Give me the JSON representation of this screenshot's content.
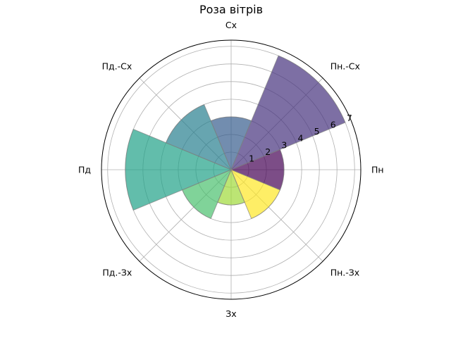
{
  "chart_data": {
    "type": "polar_bar",
    "title": "Роза вітрів",
    "directions": [
      "Пн",
      "Пн.-Сх",
      "Сх",
      "Пд.-Сх",
      "Пд",
      "Пд.-Зх",
      "Зх",
      "Пн.-Зх"
    ],
    "direction_angles_deg": [
      0,
      45,
      90,
      135,
      180,
      225,
      270,
      315
    ],
    "values": [
      3,
      7,
      3,
      4,
      6,
      3,
      2,
      3
    ],
    "bar_colors": [
      "#440154",
      "#46327e",
      "#365c8d",
      "#277f8e",
      "#1fa187",
      "#4ac16d",
      "#a0da39",
      "#fde725"
    ],
    "bar_alpha": 0.7,
    "radial_ticks": [
      1,
      2,
      3,
      4,
      5,
      6,
      7
    ],
    "rlim": [
      0,
      7.35
    ],
    "angular_grid": true,
    "radial_grid": true
  }
}
